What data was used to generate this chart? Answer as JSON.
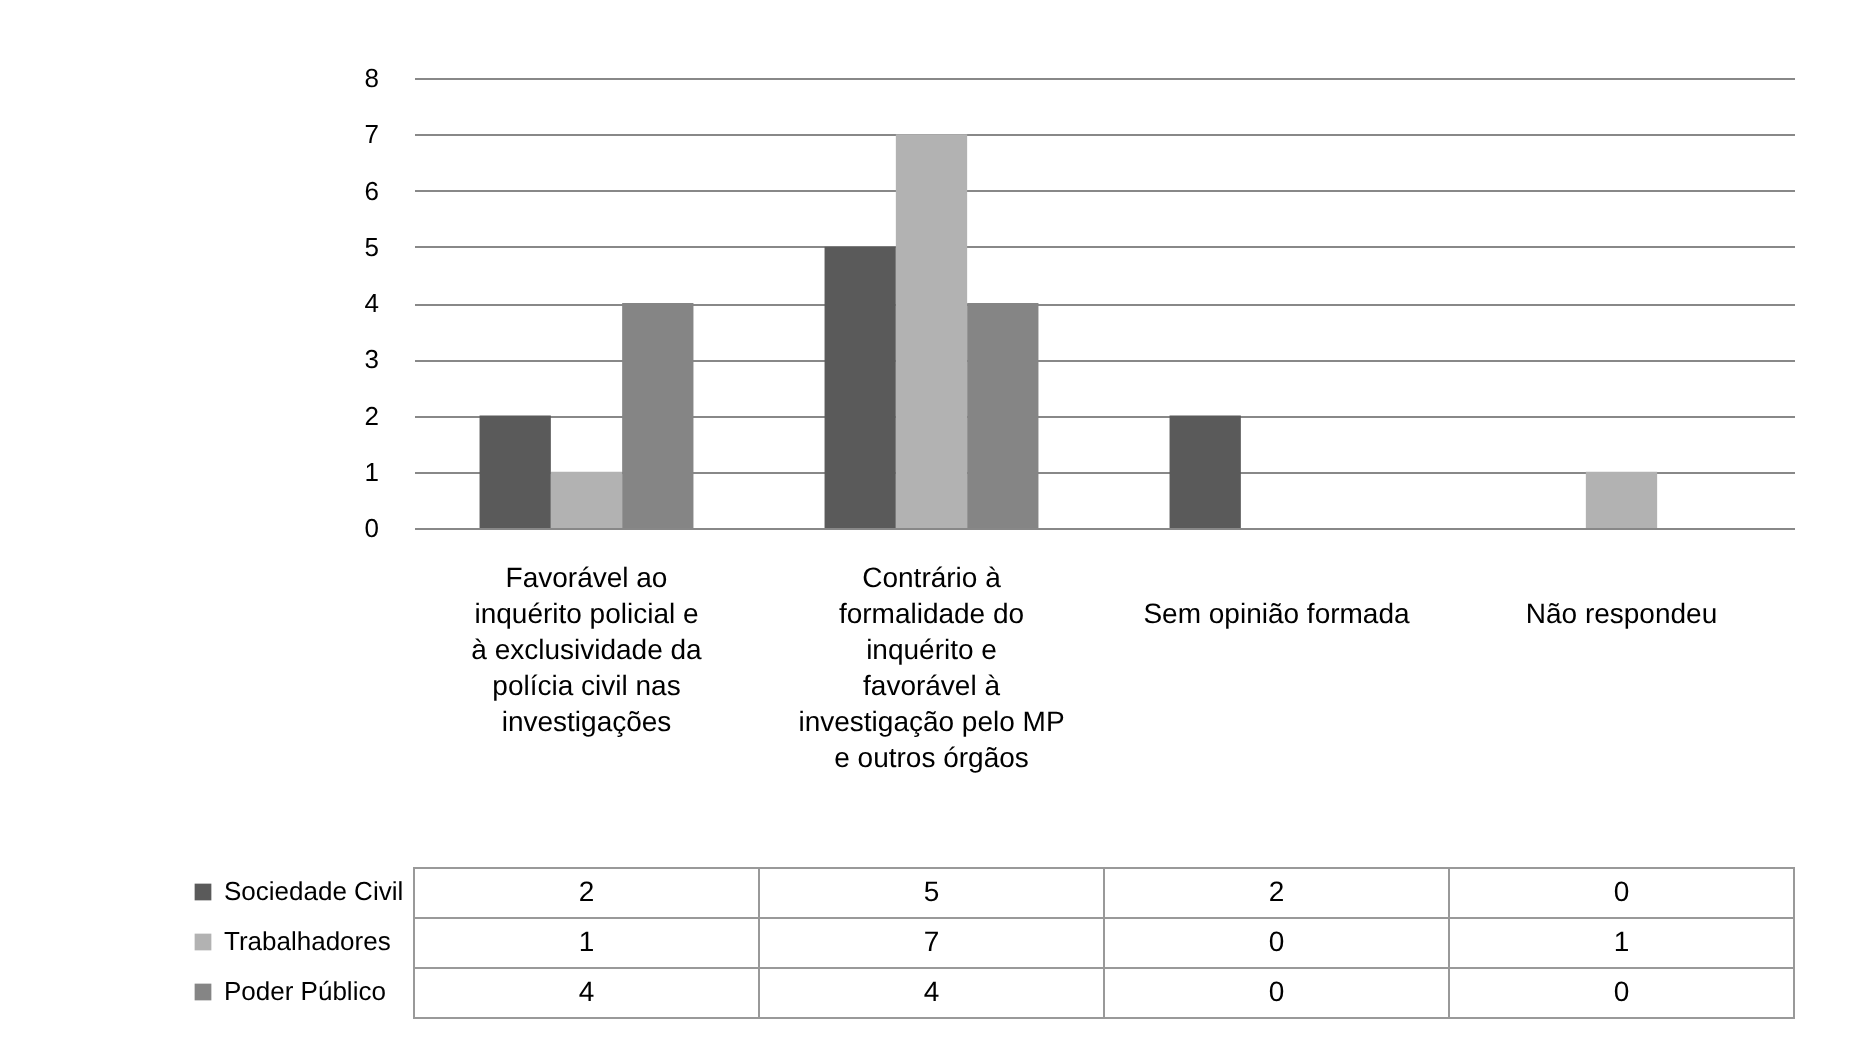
{
  "chart_data": {
    "type": "bar",
    "categories": [
      "Favorável ao inquérito policial e à exclusividade da polícia civil nas investigações",
      "Contrário à formalidade do inquérito e favorável à investigação pelo MP e outros órgãos",
      "Sem opinião formada",
      "Não respondeu"
    ],
    "series": [
      {
        "name": "Sociedade Civil",
        "color": "#5a5a5a",
        "values": [
          2,
          5,
          2,
          0
        ]
      },
      {
        "name": "Trabalhadores",
        "color": "#b2b2b2",
        "values": [
          1,
          7,
          0,
          1
        ]
      },
      {
        "name": "Poder Público",
        "color": "#858585",
        "values": [
          4,
          4,
          0,
          0
        ]
      }
    ],
    "ylim": [
      0,
      8
    ],
    "yticks": [
      0,
      1,
      2,
      3,
      4,
      5,
      6,
      7,
      8
    ],
    "grid": "y",
    "legend": "bottom left",
    "data_labels": true
  }
}
